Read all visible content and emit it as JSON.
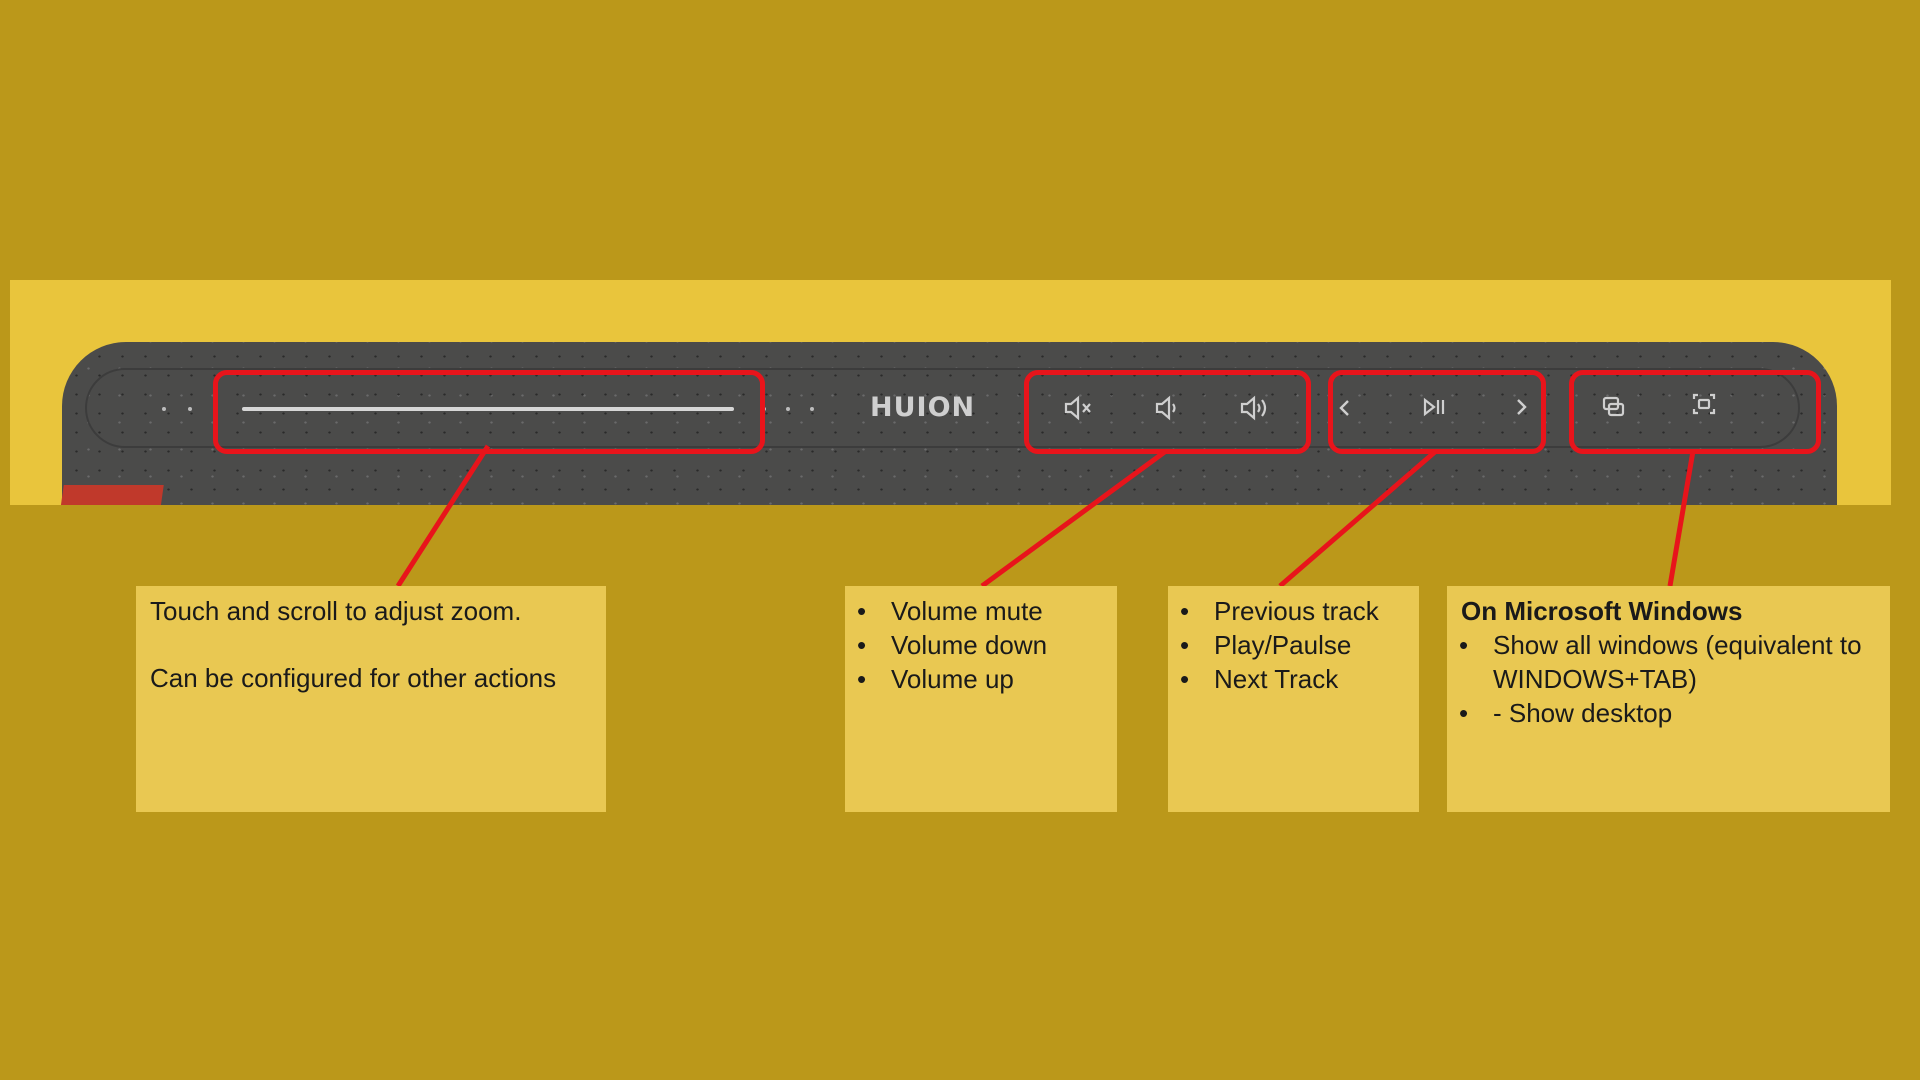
{
  "device": {
    "logo_text": "HUION",
    "icons": [
      "volume-mute-icon",
      "volume-down-icon",
      "volume-up-icon",
      "previous-icon",
      "play-pause-icon",
      "next-icon",
      "show-all-windows-icon",
      "show-desktop-icon"
    ]
  },
  "colors": {
    "background": "#BB981A",
    "note": "#E9C852",
    "highlight": "#E8141B",
    "device": "#4B4B4A"
  },
  "notes": {
    "zoom": {
      "line1": "Touch and scroll to adjust zoom.",
      "line2": "Can be configured for other actions"
    },
    "volume": {
      "items": [
        "Volume mute",
        "Volume down",
        "Volume up"
      ]
    },
    "media": {
      "items": [
        "Previous track",
        "Play/Paulse",
        "Next Track"
      ]
    },
    "windows": {
      "title": "On Microsoft Windows",
      "items": [
        "Show all windows (equivalent to WINDOWS+TAB)",
        "- Show desktop"
      ]
    }
  }
}
